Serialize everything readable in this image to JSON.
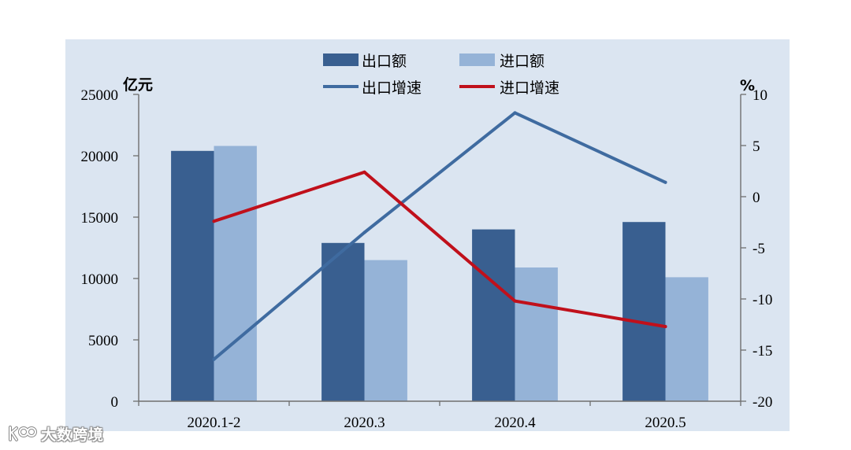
{
  "chart_data": {
    "type": "bar",
    "categories": [
      "2020.1-2",
      "2020.3",
      "2020.4",
      "2020.5"
    ],
    "series": [
      {
        "name": "出口额",
        "type": "bar",
        "axis": "left",
        "values": [
          20400,
          12900,
          14000,
          14600
        ],
        "color": "#395F90"
      },
      {
        "name": "进口额",
        "type": "bar",
        "axis": "left",
        "values": [
          20800,
          11500,
          10900,
          10100
        ],
        "color": "#95B3D7"
      },
      {
        "name": "出口增速",
        "type": "line",
        "axis": "right",
        "values": [
          -15.9,
          -3.5,
          8.2,
          1.4
        ],
        "color": "#3F6BA0"
      },
      {
        "name": "进口增速",
        "type": "line",
        "axis": "right",
        "values": [
          -2.4,
          2.4,
          -10.2,
          -12.7
        ],
        "color": "#C0101B"
      }
    ],
    "ylabel_left": "亿元",
    "ylabel_right": "%",
    "ylim_left": [
      0,
      25000
    ],
    "ylim_right": [
      -20,
      10
    ],
    "yticks_left": [
      0,
      5000,
      10000,
      15000,
      20000,
      25000
    ],
    "yticks_right": [
      -20,
      -15,
      -10,
      -5,
      0,
      5,
      10
    ],
    "legend_position": "top-center",
    "grid": false,
    "background_color": "#DBE5F1"
  },
  "watermark": {
    "text": "大数跨境"
  }
}
